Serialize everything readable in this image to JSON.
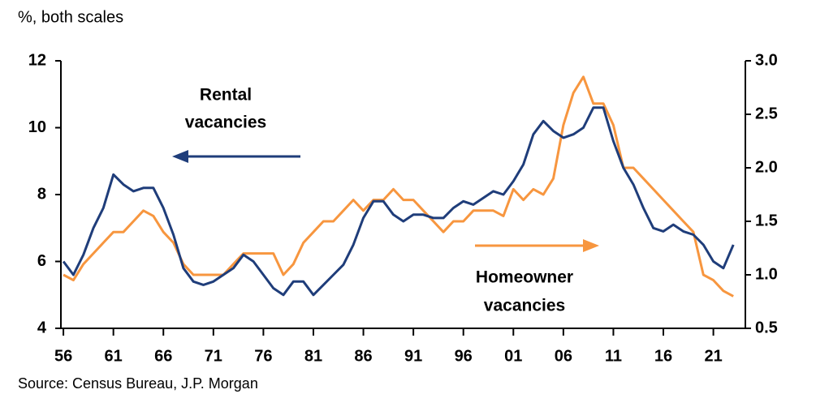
{
  "chart_data": {
    "type": "line",
    "title": "%, both scales",
    "source": "Source: Census Bureau, J.P. Morgan",
    "annotations": [
      {
        "lines": [
          "Rental",
          "vacancies"
        ]
      },
      {
        "lines": [
          "Homeowner",
          "vacancies"
        ]
      }
    ],
    "x": [
      1956,
      1957,
      1958,
      1959,
      1960,
      1961,
      1962,
      1963,
      1964,
      1965,
      1966,
      1967,
      1968,
      1969,
      1970,
      1971,
      1972,
      1973,
      1974,
      1975,
      1976,
      1977,
      1978,
      1979,
      1980,
      1981,
      1982,
      1983,
      1984,
      1985,
      1986,
      1987,
      1988,
      1989,
      1990,
      1991,
      1992,
      1993,
      1994,
      1995,
      1996,
      1997,
      1998,
      1999,
      2000,
      2001,
      2002,
      2003,
      2004,
      2005,
      2006,
      2007,
      2008,
      2009,
      2010,
      2011,
      2012,
      2013,
      2014,
      2015,
      2016,
      2017,
      2018,
      2019,
      2020,
      2021,
      2022,
      2023
    ],
    "xlim": [
      1955.75,
      2024.2
    ],
    "xticks": [
      {
        "value": 1956,
        "label": "56"
      },
      {
        "value": 1961,
        "label": "61"
      },
      {
        "value": 1966,
        "label": "66"
      },
      {
        "value": 1971,
        "label": "71"
      },
      {
        "value": 1976,
        "label": "76"
      },
      {
        "value": 1981,
        "label": "81"
      },
      {
        "value": 1986,
        "label": "86"
      },
      {
        "value": 1991,
        "label": "91"
      },
      {
        "value": 1996,
        "label": "96"
      },
      {
        "value": 2001,
        "label": "01"
      },
      {
        "value": 2006,
        "label": "06"
      },
      {
        "value": 2011,
        "label": "11"
      },
      {
        "value": 2016,
        "label": "16"
      },
      {
        "value": 2021,
        "label": "21"
      }
    ],
    "ylim": [
      4,
      12
    ],
    "yticks": [
      4,
      6,
      8,
      10,
      12
    ],
    "y2lim": [
      0.5,
      3.0
    ],
    "y2ticks": [
      0.5,
      {
        "value": 1.0,
        "label": "1.0"
      },
      1.5,
      {
        "value": 2.0,
        "label": "2.0"
      },
      2.5,
      {
        "value": 3.0,
        "label": "3.0"
      }
    ],
    "series": [
      {
        "name": "Rental vacancies",
        "color": "#1f3d7a",
        "axis": "y",
        "values": [
          6.0,
          5.6,
          6.2,
          7.0,
          7.6,
          8.6,
          8.3,
          8.1,
          8.2,
          8.2,
          7.6,
          6.8,
          5.8,
          5.4,
          5.3,
          5.4,
          5.6,
          5.8,
          6.2,
          6.0,
          5.6,
          5.2,
          5.0,
          5.4,
          5.4,
          5.0,
          5.3,
          5.6,
          5.9,
          6.5,
          7.3,
          7.8,
          7.8,
          7.4,
          7.2,
          7.4,
          7.4,
          7.3,
          7.3,
          7.6,
          7.8,
          7.7,
          7.9,
          8.1,
          8.0,
          8.4,
          8.9,
          9.8,
          10.2,
          9.9,
          9.7,
          9.8,
          10.0,
          10.6,
          10.6,
          9.6,
          8.8,
          8.3,
          7.6,
          7.0,
          6.9,
          7.1,
          6.9,
          6.8,
          6.5,
          6.0,
          5.8,
          6.5
        ]
      },
      {
        "name": "Homeowner vacancies",
        "color": "#f7963f",
        "axis": "y2",
        "values": [
          1.0,
          0.95,
          1.1,
          1.2,
          1.3,
          1.4,
          1.4,
          1.5,
          1.6,
          1.55,
          1.4,
          1.3,
          1.1,
          1.0,
          1.0,
          1.0,
          1.0,
          1.1,
          1.2,
          1.2,
          1.2,
          1.2,
          1.0,
          1.1,
          1.3,
          1.4,
          1.5,
          1.5,
          1.6,
          1.7,
          1.6,
          1.7,
          1.7,
          1.8,
          1.7,
          1.7,
          1.6,
          1.5,
          1.4,
          1.5,
          1.5,
          1.6,
          1.6,
          1.6,
          1.55,
          1.8,
          1.7,
          1.8,
          1.75,
          1.9,
          2.4,
          2.7,
          2.85,
          2.6,
          2.6,
          2.4,
          2.0,
          2.0,
          1.9,
          1.8,
          1.7,
          1.6,
          1.5,
          1.4,
          1.0,
          0.95,
          0.85,
          0.8
        ]
      }
    ]
  }
}
